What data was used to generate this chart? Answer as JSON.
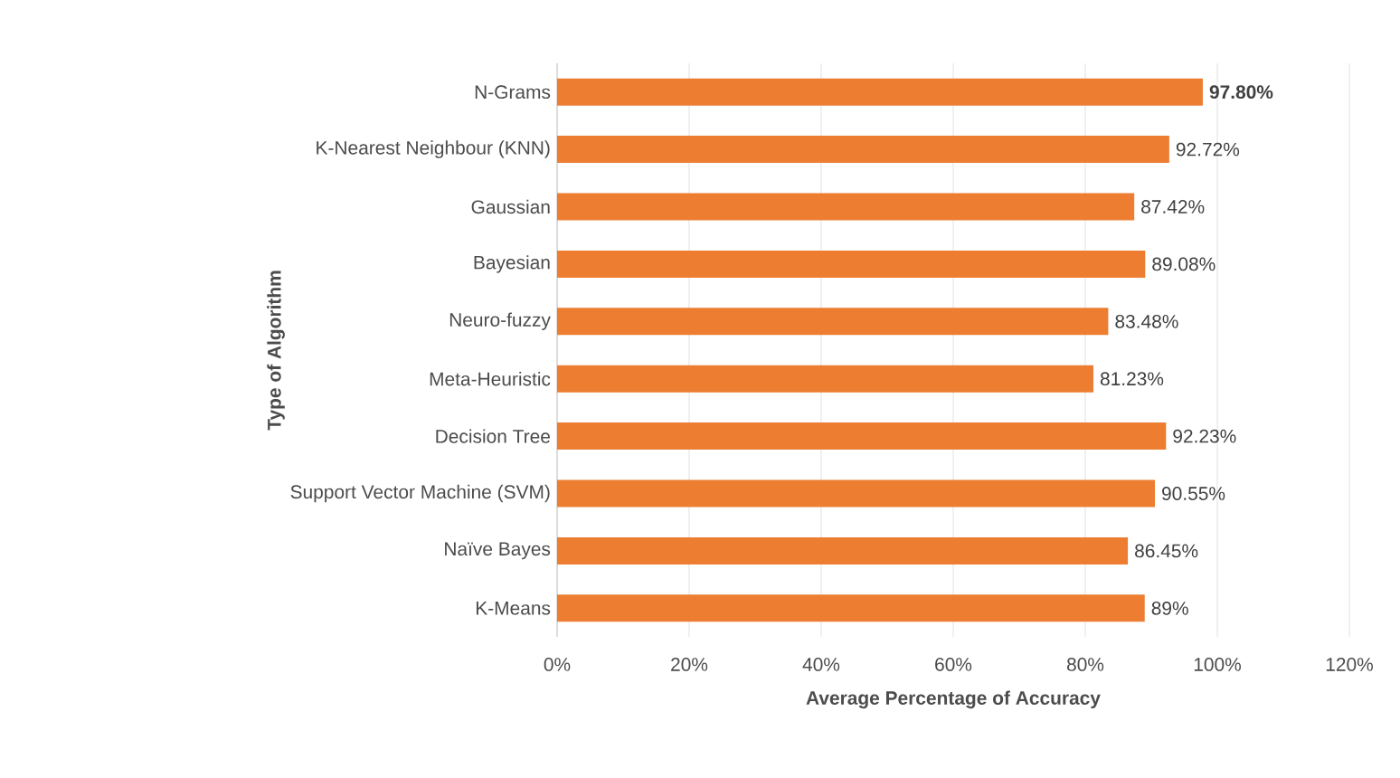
{
  "chart_data": {
    "type": "bar",
    "orientation": "horizontal",
    "xlabel": "Average Percentage of Accuracy",
    "ylabel": "Type of Algorithm",
    "categories": [
      "N-Grams",
      "K-Nearest Neighbour (KNN)",
      "Gaussian",
      "Bayesian",
      "Neuro-fuzzy",
      "Meta-Heuristic",
      "Decision Tree",
      "Support Vector Machine (SVM)",
      "Naïve Bayes",
      "K-Means"
    ],
    "values": [
      97.8,
      92.72,
      87.42,
      89.08,
      83.48,
      81.23,
      92.23,
      90.55,
      86.45,
      89
    ],
    "value_labels": [
      "**97.80%**",
      "92.72%",
      "87.42%",
      "89.08%",
      "83.48%",
      "81.23%",
      "92.23%",
      "90.55%",
      "86.45%",
      "89%"
    ],
    "color": "#ed7d31",
    "xlim": [
      0,
      120
    ],
    "xticks": [
      {
        "value": 0,
        "label": "0%"
      },
      {
        "value": 20,
        "label": "20%"
      },
      {
        "value": 40,
        "label": "40%"
      },
      {
        "value": 60,
        "label": "60%"
      },
      {
        "value": 80,
        "label": "80%"
      },
      {
        "value": 100,
        "label": "100%"
      },
      {
        "value": 120,
        "label": "120%"
      }
    ],
    "grid": "x"
  }
}
